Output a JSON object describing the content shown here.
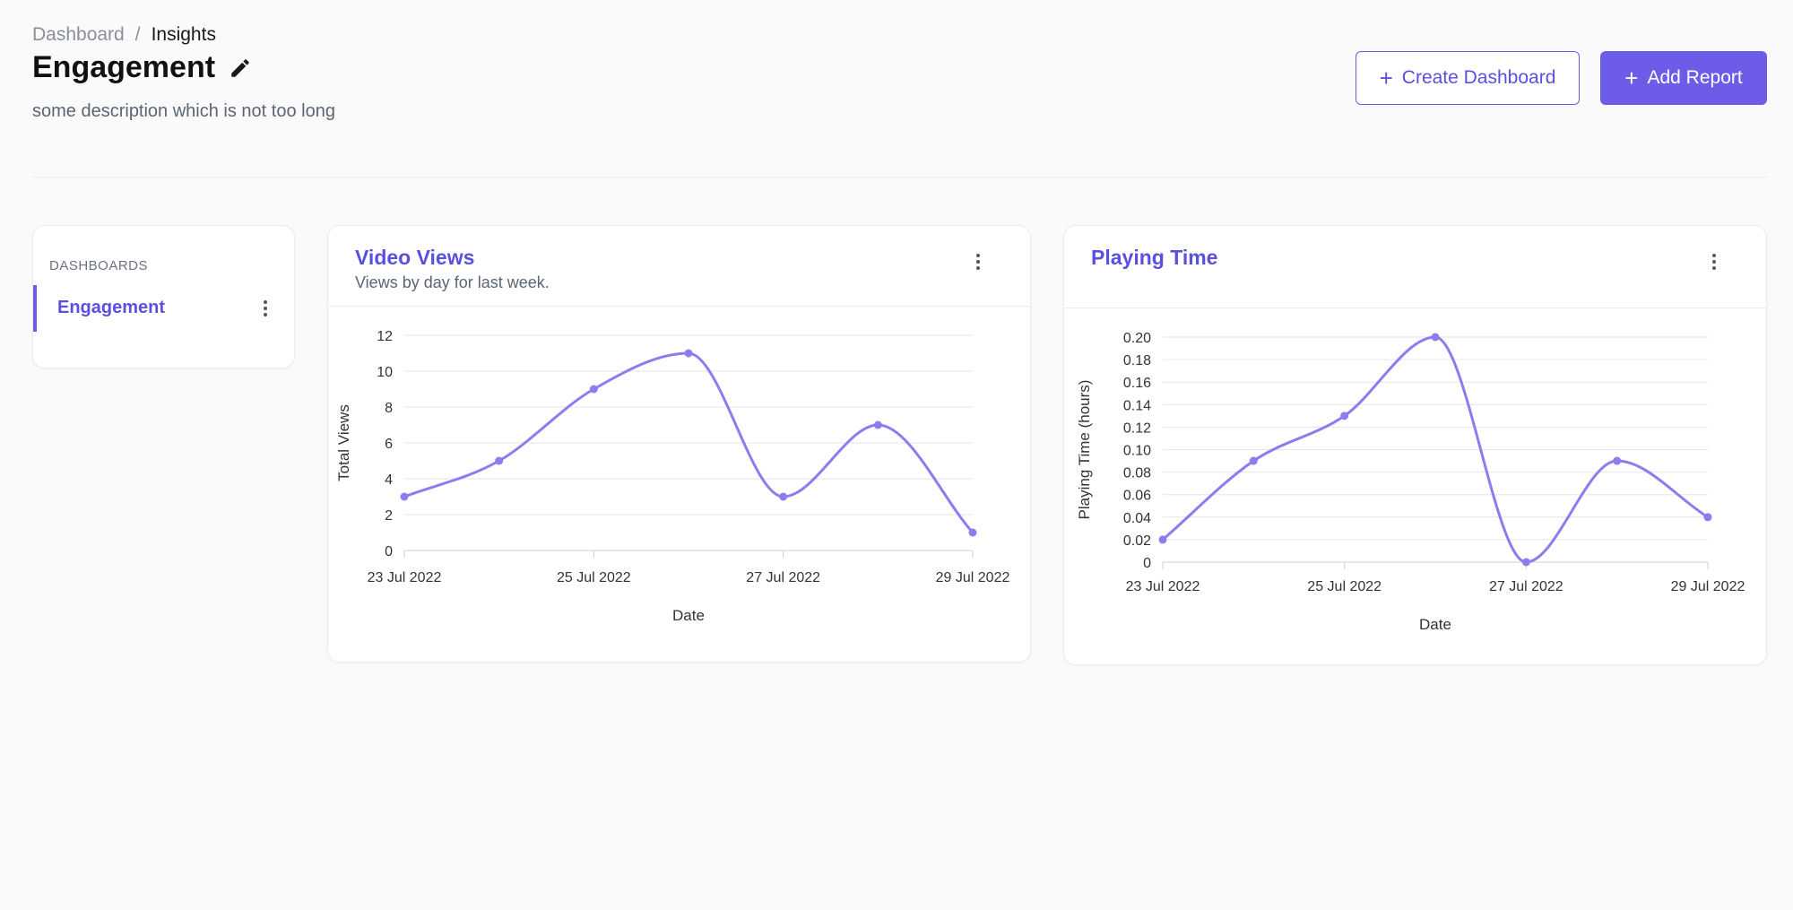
{
  "breadcrumb": {
    "parent": "Dashboard",
    "separator": "/",
    "current": "Insights"
  },
  "page": {
    "title": "Engagement",
    "description": "some description which is not too long"
  },
  "actions": {
    "create_dashboard": "Create Dashboard",
    "add_report": "Add Report",
    "icon": "plus-icon"
  },
  "sidebar": {
    "heading": "DASHBOARDS",
    "items": [
      {
        "label": "Engagement",
        "active": true
      }
    ]
  },
  "colors": {
    "accent": "#6c5ce7",
    "accent_text": "#5b4fe0",
    "line": "#8b7cf0",
    "grid": "#e6e6e6"
  },
  "chart_data": [
    {
      "type": "line",
      "title": "Video Views",
      "subtitle": "Views by day for last week.",
      "x": [
        "23 Jul 2022",
        "24 Jul 2022",
        "25 Jul 2022",
        "26 Jul 2022",
        "27 Jul 2022",
        "28 Jul 2022",
        "29 Jul 2022"
      ],
      "x_tick_labels": [
        "23 Jul 2022",
        "25 Jul 2022",
        "27 Jul 2022",
        "29 Jul 2022"
      ],
      "values": [
        3,
        5,
        9,
        11,
        3,
        7,
        1
      ],
      "xlabel": "Date",
      "ylabel": "Total Views",
      "ylim": [
        0,
        12
      ],
      "yticks": [
        0,
        2,
        4,
        6,
        8,
        10,
        12
      ],
      "grid": true,
      "smooth": true
    },
    {
      "type": "line",
      "title": "Playing Time",
      "subtitle": "",
      "x": [
        "23 Jul 2022",
        "24 Jul 2022",
        "25 Jul 2022",
        "26 Jul 2022",
        "27 Jul 2022",
        "28 Jul 2022",
        "29 Jul 2022"
      ],
      "x_tick_labels": [
        "23 Jul 2022",
        "25 Jul 2022",
        "27 Jul 2022",
        "29 Jul 2022"
      ],
      "values": [
        0.02,
        0.09,
        0.13,
        0.2,
        0,
        0.09,
        0.04
      ],
      "xlabel": "Date",
      "ylabel": "Playing Time (hours)",
      "ylim": [
        0,
        0.2
      ],
      "yticks": [
        0,
        0.02,
        0.04,
        0.06,
        0.08,
        0.1,
        0.12,
        0.14,
        0.16,
        0.18,
        0.2
      ],
      "ytick_labels": [
        "0",
        "0.02",
        "0.04",
        "0.06",
        "0.08",
        "0.10",
        "0.12",
        "0.14",
        "0.16",
        "0.18",
        "0.20"
      ],
      "grid": true,
      "smooth": true
    }
  ]
}
